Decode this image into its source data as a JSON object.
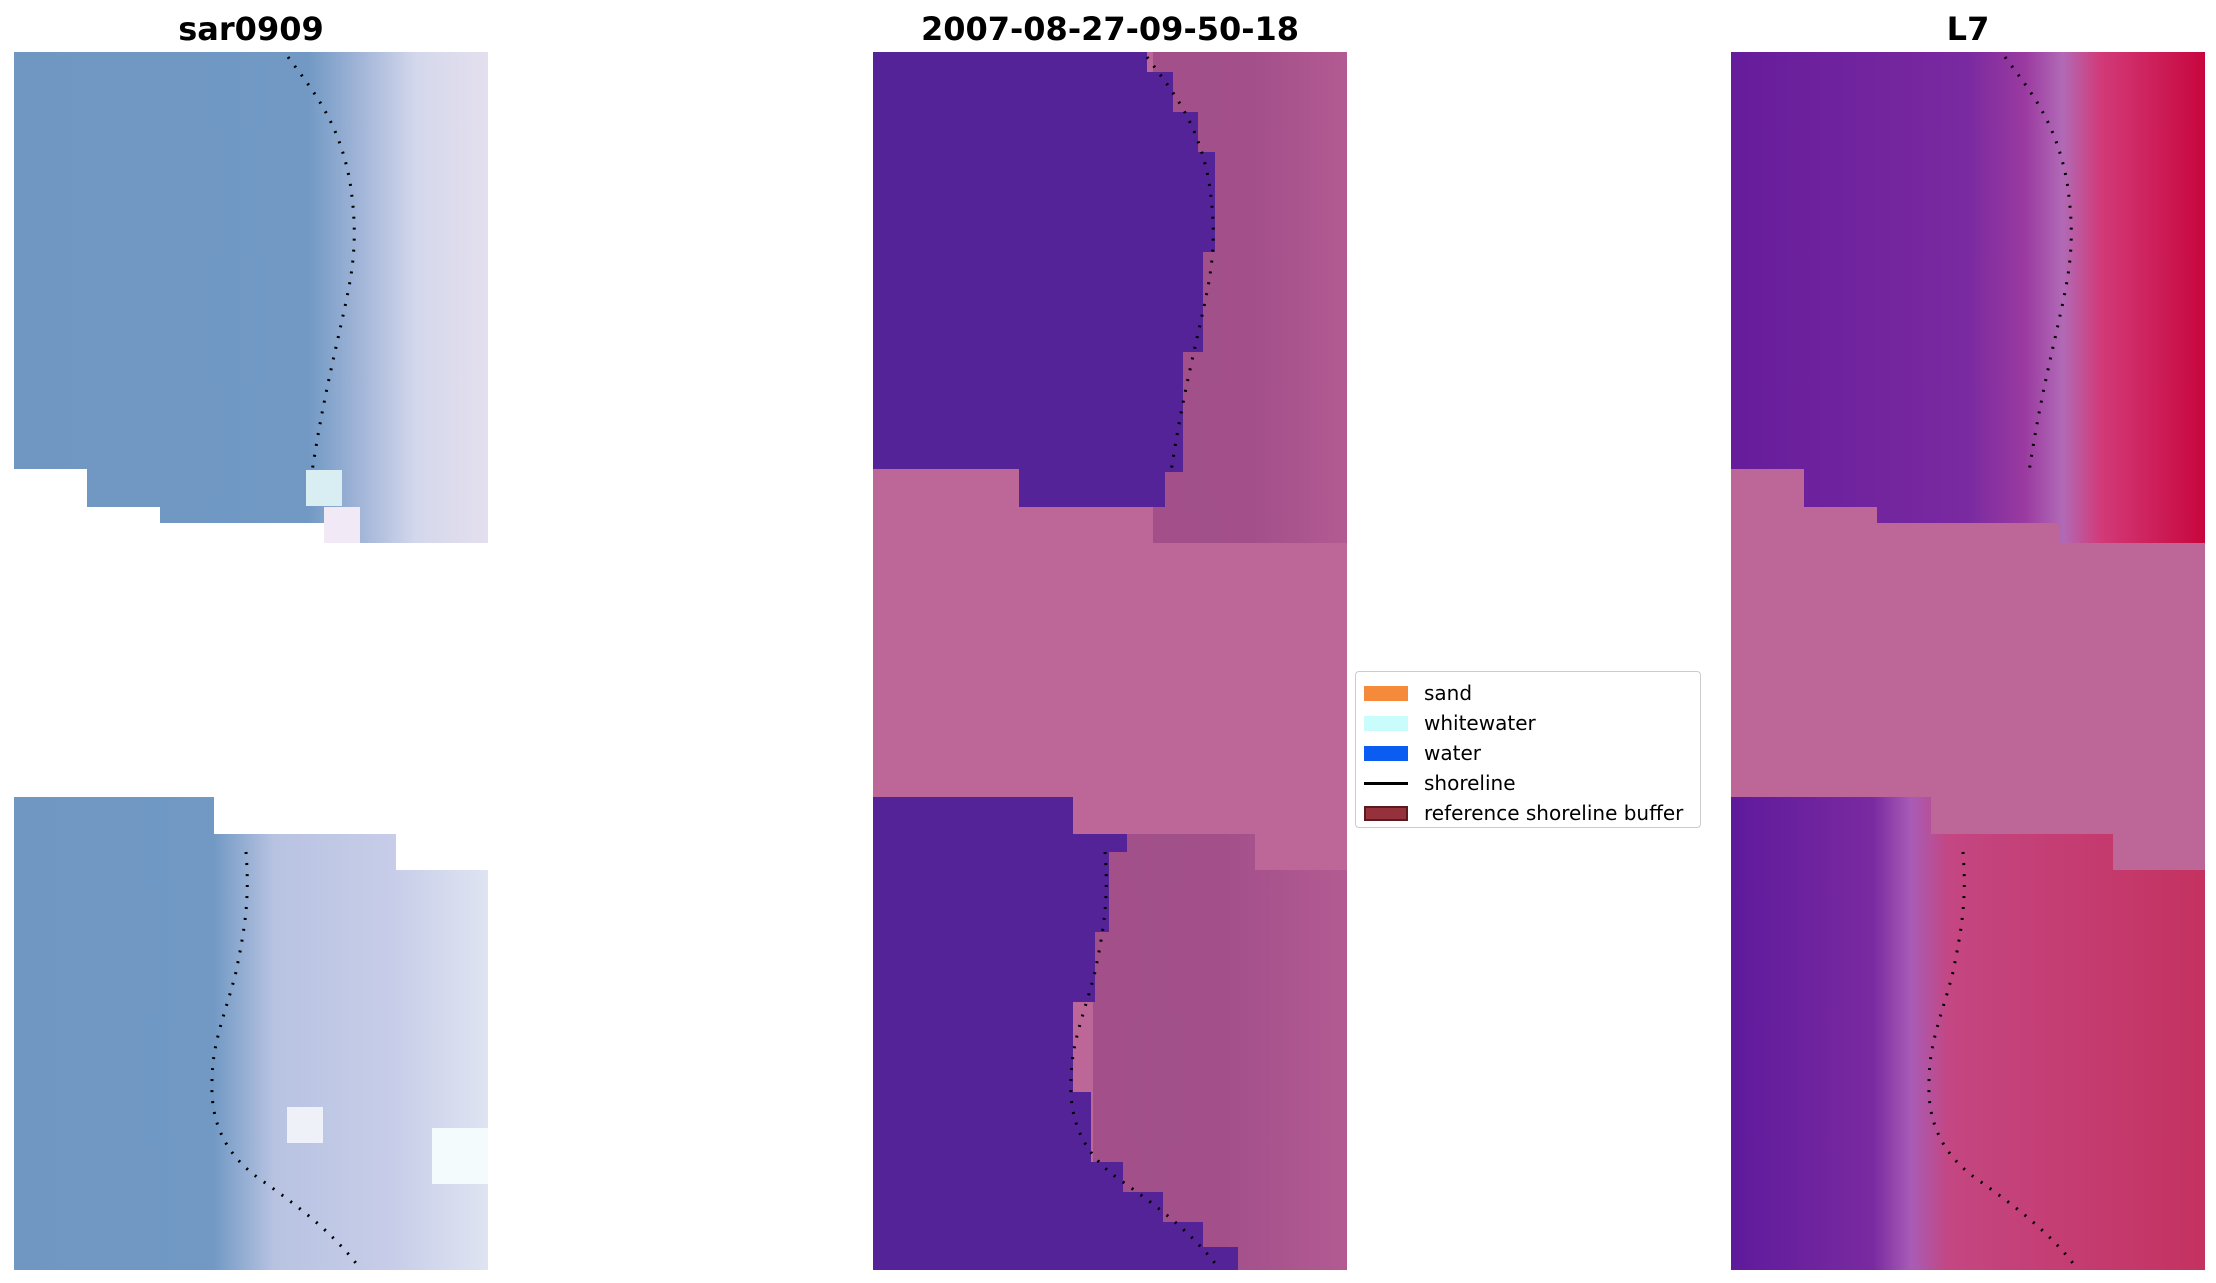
{
  "panels": [
    {
      "title": "sar0909"
    },
    {
      "title": "2007-08-27-09-50-18"
    },
    {
      "title": "L7"
    }
  ],
  "legend": {
    "items": [
      {
        "label": "sand",
        "color": "#f58b3a",
        "kind": "patch"
      },
      {
        "label": "whitewater",
        "color": "#c8fdfb",
        "kind": "patch"
      },
      {
        "label": "water",
        "color": "#0a5df0",
        "kind": "patch"
      },
      {
        "label": "shoreline",
        "color": "#000000",
        "kind": "line"
      },
      {
        "label": "reference shoreline buffer",
        "color": "#94313a",
        "kind": "patch",
        "edge": "#5a1a20"
      }
    ]
  },
  "colors": {
    "rgb_water": "#6f97c2",
    "rgb_beach": "#d8dcee",
    "class_water": "#542397",
    "class_land": "#b86598",
    "class_gap": "#bd6798",
    "index_water": "#6a1f9e",
    "index_land": "#c02450",
    "shoreline_dots": "#000000"
  }
}
